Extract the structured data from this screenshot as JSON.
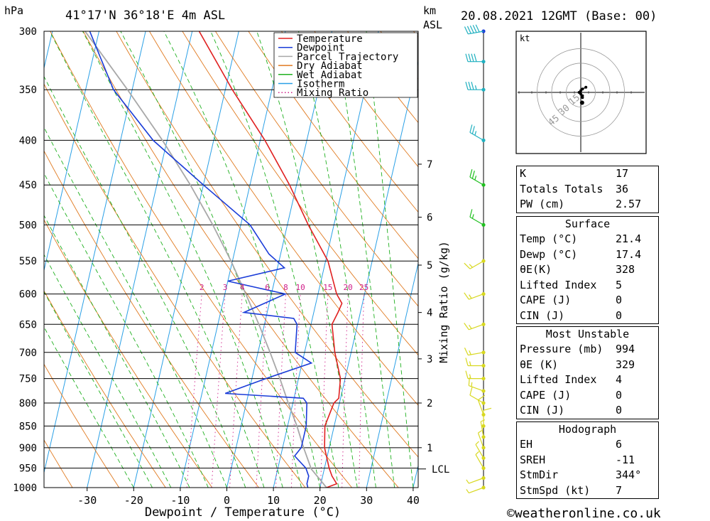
{
  "header": {
    "location": "41°17'N  36°18'E  4m  ASL",
    "datetime": "20.08.2021  12GMT  (Base: 00)",
    "pressure_unit": "hPa",
    "km_label": "km",
    "asl_label": "ASL"
  },
  "footer": {
    "credit": "©weatheronline.co.uk"
  },
  "legend": [
    "Temperature",
    "Dewpoint",
    "Parcel Trajectory",
    "Dry Adiabat",
    "Wet Adiabat",
    "Isotherm",
    "Mixing Ratio"
  ],
  "colors": {
    "temperature": "#e02020",
    "dewpoint": "#1a3cd8",
    "parcel": "#a8a8a8",
    "dry_adiabat": "#e07a20",
    "wet_adiabat": "#20b020",
    "isotherm": "#2aa0e6",
    "mixing_ratio": "#d0208a"
  },
  "hodograph": {
    "unit": "kt",
    "ring_labels": [
      "15",
      "30",
      "45"
    ]
  },
  "indices": {
    "rows": [
      {
        "label": "K",
        "value": "17"
      },
      {
        "label": "Totals Totals",
        "value": "36"
      },
      {
        "label": "PW (cm)",
        "value": "2.57"
      }
    ],
    "surface": {
      "title": "Surface",
      "rows": [
        {
          "label": "Temp (°C)",
          "value": "21.4"
        },
        {
          "label": "Dewp (°C)",
          "value": "17.4"
        },
        {
          "label": "θE(K)",
          "value": "328"
        },
        {
          "label": "Lifted Index",
          "value": "5"
        },
        {
          "label": "CAPE (J)",
          "value": "0"
        },
        {
          "label": "CIN (J)",
          "value": "0"
        }
      ]
    },
    "most_unstable": {
      "title": "Most Unstable",
      "rows": [
        {
          "label": "Pressure (mb)",
          "value": "994"
        },
        {
          "label": "θE (K)",
          "value": "329"
        },
        {
          "label": "Lifted Index",
          "value": "4"
        },
        {
          "label": "CAPE (J)",
          "value": "0"
        },
        {
          "label": "CIN (J)",
          "value": "0"
        }
      ]
    },
    "hodograph_stats": {
      "title": "Hodograph",
      "rows": [
        {
          "label": "EH",
          "value": "6"
        },
        {
          "label": "SREH",
          "value": "-11"
        },
        {
          "label": "StmDir",
          "value": "344°"
        },
        {
          "label": "StmSpd (kt)",
          "value": "7"
        }
      ]
    }
  },
  "chart_data": {
    "type": "line",
    "xlabel": "Dewpoint / Temperature (°C)",
    "ylabel_right": "Mixing Ratio (g/kg)",
    "xlim": [
      -40,
      40
    ],
    "pressure_levels": [
      300,
      350,
      400,
      450,
      500,
      550,
      600,
      650,
      700,
      750,
      800,
      850,
      900,
      950,
      1000
    ],
    "x_ticks": [
      -30,
      -20,
      -10,
      0,
      10,
      20,
      30,
      40
    ],
    "km_ticks": [
      {
        "km": 1,
        "p": 900
      },
      {
        "km": 2,
        "p": 800
      },
      {
        "km": 3,
        "p": 712
      },
      {
        "km": 4,
        "p": 630
      },
      {
        "km": 5,
        "p": 556
      },
      {
        "km": 6,
        "p": 490
      },
      {
        "km": 7,
        "p": 426
      }
    ],
    "lcl": {
      "label": "LCL",
      "p": 952
    },
    "mixing_ratio_labels": [
      "2",
      "3",
      "4",
      "6",
      "8",
      "10",
      "15",
      "20",
      "25"
    ],
    "mixing_ratio_values": [
      2,
      3,
      4,
      6,
      8,
      10,
      15,
      20,
      25
    ],
    "series": [
      {
        "name": "Temperature",
        "p": [
          1000,
          990,
          970,
          950,
          900,
          850,
          800,
          790,
          750,
          700,
          650,
          630,
          615,
          600,
          550,
          500,
          450,
          400,
          350,
          300
        ],
        "t": [
          21.4,
          23.4,
          22.0,
          21.0,
          19.0,
          18.0,
          18.8,
          19.6,
          19.0,
          16.5,
          14.5,
          15.2,
          15.6,
          14.0,
          10.5,
          4.5,
          -1.5,
          -9.0,
          -18.5,
          -28.5
        ]
      },
      {
        "name": "Dewpoint",
        "p": [
          1000,
          990,
          970,
          950,
          920,
          900,
          850,
          800,
          790,
          780,
          750,
          720,
          700,
          650,
          640,
          630,
          600,
          580,
          560,
          540,
          500,
          450,
          400,
          350,
          300
        ],
        "t": [
          17.4,
          17.0,
          17.0,
          16.0,
          13.0,
          14.0,
          14.0,
          13.0,
          12.0,
          -5.0,
          3.0,
          12.0,
          8.0,
          7.0,
          6.0,
          -5.0,
          3.0,
          -10.0,
          1.5,
          -2.5,
          -8.0,
          -20.0,
          -33.0,
          -44.0,
          -52.0
        ]
      },
      {
        "name": "Parcel Trajectory",
        "p": [
          1000,
          952,
          900,
          850,
          800,
          750,
          700,
          650,
          600,
          550,
          500,
          450,
          400,
          350,
          300
        ],
        "t": [
          21.4,
          17.2,
          14.5,
          12.0,
          9.0,
          6.0,
          2.6,
          -1.2,
          -5.5,
          -10.3,
          -16.0,
          -22.8,
          -31.0,
          -41.0,
          -53.0
        ]
      }
    ],
    "winds": {
      "p": [
        1000,
        975,
        950,
        925,
        900,
        875,
        850,
        825,
        800,
        775,
        750,
        725,
        700,
        650,
        600,
        550,
        500,
        450,
        400,
        350,
        325,
        300
      ],
      "direction_deg": [
        250,
        250,
        330,
        330,
        340,
        350,
        0,
        340,
        300,
        290,
        270,
        270,
        260,
        250,
        250,
        240,
        300,
        300,
        300,
        270,
        270,
        260
      ],
      "speed_kt": [
        5,
        5,
        5,
        5,
        5,
        5,
        10,
        10,
        10,
        15,
        15,
        15,
        15,
        15,
        15,
        15,
        15,
        25,
        25,
        35,
        40,
        50
      ]
    },
    "hodograph_trace": {
      "u_kt": [
        1,
        1,
        0,
        -1,
        0,
        1,
        3
      ],
      "v_kt": [
        -2,
        -3,
        -1,
        0,
        1,
        2,
        3
      ]
    },
    "storm_motion": {
      "direction_deg": 344,
      "speed_kt": 7
    }
  }
}
